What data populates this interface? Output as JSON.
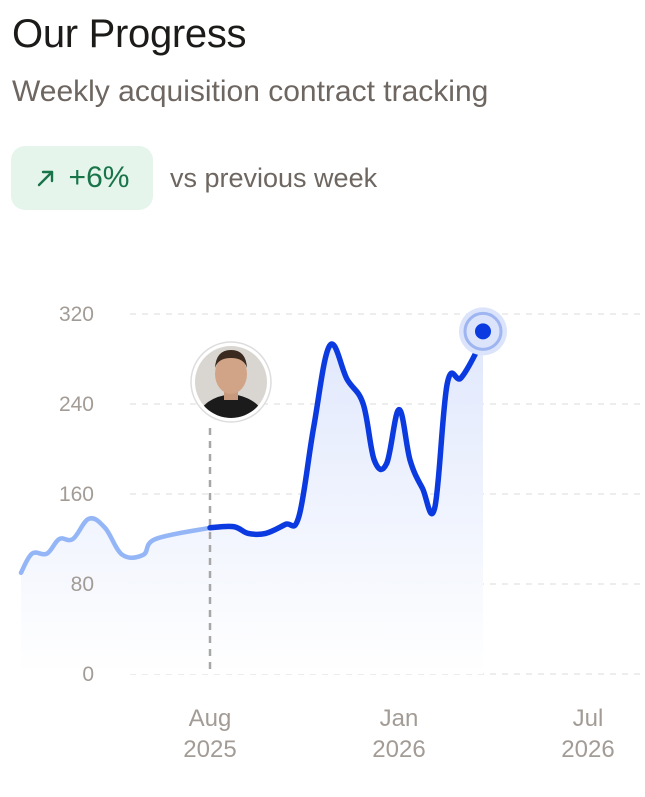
{
  "header": {
    "title": "Our Progress",
    "subtitle": "Weekly acquisition contract tracking"
  },
  "delta": {
    "value": "+6%",
    "caption": "vs previous week",
    "icon": "arrow-up-right-icon",
    "color": "#19744a",
    "background": "#e5f5eb"
  },
  "colors": {
    "line_past": "#94b6f7",
    "line_current": "#0b3be0",
    "area_top": "#dfe7fc",
    "grid": "#e2e2e2",
    "marker": "#a7a7a7"
  },
  "chart_data": {
    "type": "line",
    "title": "",
    "xlabel": "",
    "ylabel": "",
    "ylim": [
      0,
      320
    ],
    "yticks": [
      "0",
      "80",
      "160",
      "240",
      "320"
    ],
    "xlim": [
      "2025-03-01",
      "2026-08-15"
    ],
    "xticks": [
      {
        "date": "2025-08-01",
        "line1": "Aug",
        "line2": "2025"
      },
      {
        "date": "2026-01-01",
        "line1": "Jan",
        "line2": "2026"
      },
      {
        "date": "2026-07-01",
        "line1": "Jul",
        "line2": "2026"
      }
    ],
    "grid": true,
    "highlight_date": "2025-08-01",
    "series": [
      {
        "style": "past",
        "points": [
          {
            "x": "2025-03-01",
            "y": 90
          },
          {
            "x": "2025-03-10",
            "y": 107
          },
          {
            "x": "2025-03-22",
            "y": 107
          },
          {
            "x": "2025-04-01",
            "y": 120
          },
          {
            "x": "2025-04-12",
            "y": 120
          },
          {
            "x": "2025-04-25",
            "y": 138
          },
          {
            "x": "2025-05-08",
            "y": 130
          },
          {
            "x": "2025-05-22",
            "y": 106
          },
          {
            "x": "2025-06-08",
            "y": 106
          },
          {
            "x": "2025-06-18",
            "y": 120
          },
          {
            "x": "2025-08-01",
            "y": 130
          }
        ]
      },
      {
        "style": "current",
        "points": [
          {
            "x": "2025-08-01",
            "y": 130
          },
          {
            "x": "2025-08-20",
            "y": 131
          },
          {
            "x": "2025-09-01",
            "y": 125
          },
          {
            "x": "2025-09-15",
            "y": 125
          },
          {
            "x": "2025-10-01",
            "y": 133
          },
          {
            "x": "2025-10-12",
            "y": 140
          },
          {
            "x": "2025-10-24",
            "y": 220
          },
          {
            "x": "2025-11-06",
            "y": 292
          },
          {
            "x": "2025-11-20",
            "y": 262
          },
          {
            "x": "2025-12-03",
            "y": 240
          },
          {
            "x": "2025-12-12",
            "y": 190
          },
          {
            "x": "2025-12-22",
            "y": 187
          },
          {
            "x": "2026-01-01",
            "y": 235
          },
          {
            "x": "2026-01-10",
            "y": 190
          },
          {
            "x": "2026-01-20",
            "y": 165
          },
          {
            "x": "2026-01-30",
            "y": 148
          },
          {
            "x": "2026-02-09",
            "y": 258
          },
          {
            "x": "2026-02-20",
            "y": 263
          },
          {
            "x": "2026-03-04",
            "y": 285
          },
          {
            "x": "2026-03-10",
            "y": 301
          }
        ]
      }
    ]
  }
}
